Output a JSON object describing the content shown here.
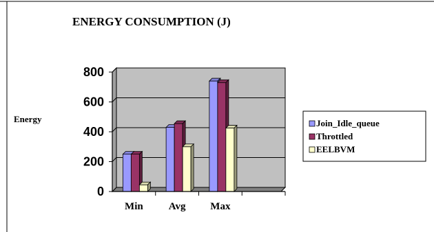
{
  "chart_data": {
    "type": "bar",
    "title": "ENERGY CONSUMPTION  (J)",
    "xlabel": "",
    "ylabel": "Energy",
    "categories": [
      "Min",
      "Avg",
      "Max"
    ],
    "ylim": [
      0,
      800
    ],
    "yticks": [
      0,
      200,
      400,
      600,
      800
    ],
    "grid": true,
    "legend_position": "right",
    "series": [
      {
        "name": "Join_Idle_queue",
        "color": "#9999ff",
        "values": [
          250,
          430,
          740
        ]
      },
      {
        "name": "Throttled",
        "color": "#993366",
        "values": [
          250,
          455,
          730
        ]
      },
      {
        "name": "EELBVM",
        "color": "#ffffcc",
        "values": [
          45,
          300,
          425
        ]
      }
    ],
    "plot_background": "#c0c0c0"
  }
}
